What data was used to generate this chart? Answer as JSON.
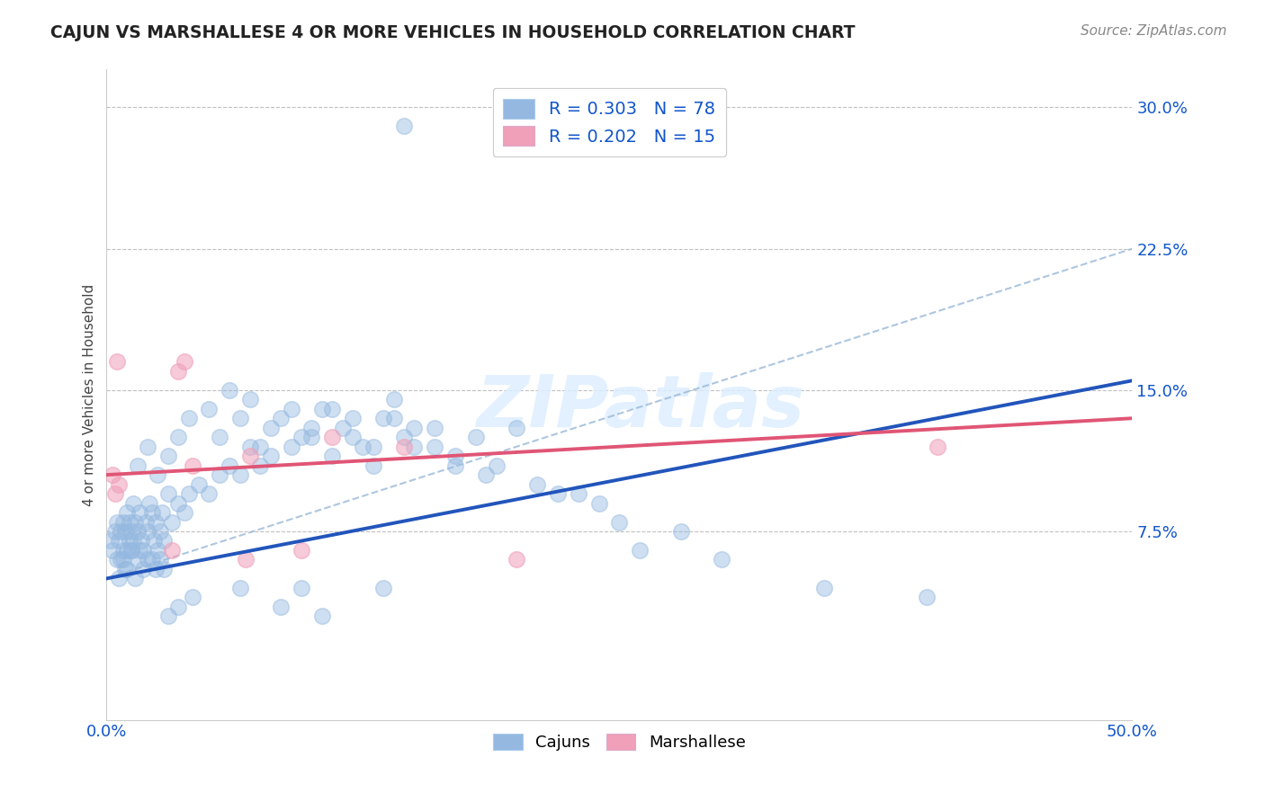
{
  "title": "CAJUN VS MARSHALLESE 4 OR MORE VEHICLES IN HOUSEHOLD CORRELATION CHART",
  "source": "Source: ZipAtlas.com",
  "xmin": 0.0,
  "xmax": 50.0,
  "ymin": -2.5,
  "ymax": 32.0,
  "yticks": [
    7.5,
    15.0,
    22.5,
    30.0
  ],
  "xticks": [
    0.0,
    50.0
  ],
  "cajun_R": 0.303,
  "cajun_N": 78,
  "marshallese_R": 0.202,
  "marshallese_N": 15,
  "cajun_color": "#94b8e0",
  "marshallese_color": "#f0a0b8",
  "trendline_cajun_color": "#2255bb",
  "trendline_marshallese_color": "#e05575",
  "trendline_dashed_color": "#9ab8d8",
  "background_color": "#ffffff",
  "cajun_x": [
    0.2,
    0.3,
    0.4,
    0.5,
    0.5,
    0.6,
    0.7,
    0.7,
    0.8,
    0.8,
    0.9,
    0.9,
    1.0,
    1.0,
    1.1,
    1.1,
    1.2,
    1.2,
    1.3,
    1.3,
    1.4,
    1.5,
    1.5,
    1.6,
    1.7,
    1.8,
    1.9,
    2.0,
    2.0,
    2.1,
    2.2,
    2.3,
    2.4,
    2.5,
    2.6,
    2.7,
    2.8,
    3.0,
    3.2,
    3.5,
    3.8,
    4.0,
    4.5,
    5.0,
    5.5,
    6.0,
    6.5,
    7.0,
    7.5,
    8.0,
    9.0,
    10.0,
    11.0,
    12.0,
    13.0,
    14.0,
    15.0,
    16.0,
    17.0,
    18.0,
    19.0,
    20.0,
    22.0,
    24.0,
    26.0,
    28.0,
    30.0,
    35.0,
    40.0,
    14.5,
    3.0,
    3.5,
    4.2,
    6.5,
    8.5,
    9.5,
    10.5,
    13.5
  ],
  "cajun_y": [
    7.0,
    6.5,
    7.5,
    8.0,
    6.0,
    7.0,
    7.5,
    6.0,
    8.0,
    6.5,
    7.5,
    5.5,
    8.5,
    6.5,
    7.0,
    8.0,
    7.5,
    6.5,
    9.0,
    7.0,
    8.0,
    7.5,
    6.0,
    8.5,
    7.0,
    6.5,
    8.0,
    7.5,
    6.0,
    9.0,
    8.5,
    7.0,
    8.0,
    6.5,
    7.5,
    8.5,
    7.0,
    9.5,
    8.0,
    9.0,
    8.5,
    9.5,
    10.0,
    9.5,
    10.5,
    11.0,
    10.5,
    12.0,
    11.0,
    11.5,
    12.0,
    13.0,
    11.5,
    12.5,
    11.0,
    13.5,
    12.0,
    13.0,
    11.5,
    12.5,
    11.0,
    13.0,
    9.5,
    9.0,
    6.5,
    7.5,
    6.0,
    4.5,
    4.0,
    29.0,
    3.0,
    3.5,
    4.0,
    4.5,
    3.5,
    4.5,
    3.0,
    4.5
  ],
  "cajun_x_extra": [
    1.5,
    2.0,
    2.5,
    3.0,
    3.5,
    4.0,
    5.0,
    6.0,
    7.0,
    8.0,
    9.0,
    10.0,
    11.0,
    12.0,
    13.0,
    14.0,
    15.0,
    16.0,
    5.5,
    6.5,
    7.5,
    8.5,
    9.5,
    10.5,
    11.5,
    12.5,
    13.5,
    14.5,
    0.6,
    0.8,
    1.0,
    1.2,
    1.4,
    1.6,
    1.8,
    2.2,
    2.4,
    2.6,
    2.8,
    17.0,
    18.5,
    21.0,
    23.0,
    25.0
  ],
  "cajun_y_extra": [
    11.0,
    12.0,
    10.5,
    11.5,
    12.5,
    13.5,
    14.0,
    15.0,
    14.5,
    13.0,
    14.0,
    12.5,
    14.0,
    13.5,
    12.0,
    14.5,
    13.0,
    12.0,
    12.5,
    13.5,
    12.0,
    13.5,
    12.5,
    14.0,
    13.0,
    12.0,
    13.5,
    12.5,
    5.0,
    6.0,
    5.5,
    6.5,
    5.0,
    6.5,
    5.5,
    6.0,
    5.5,
    6.0,
    5.5,
    11.0,
    10.5,
    10.0,
    9.5,
    8.0
  ],
  "marsh_x": [
    0.3,
    0.4,
    0.5,
    3.5,
    3.8,
    4.2,
    7.0,
    9.5,
    11.0,
    14.5,
    40.5,
    3.2,
    0.6,
    6.8,
    20.0
  ],
  "marsh_y": [
    10.5,
    9.5,
    16.5,
    16.0,
    16.5,
    11.0,
    11.5,
    6.5,
    12.5,
    12.0,
    12.0,
    6.5,
    10.0,
    6.0,
    6.0
  ],
  "cajun_trend_x0": 0.0,
  "cajun_trend_y0": 5.0,
  "cajun_trend_x1": 50.0,
  "cajun_trend_y1": 15.5,
  "marsh_trend_x0": 0.0,
  "marsh_trend_y0": 10.5,
  "marsh_trend_x1": 50.0,
  "marsh_trend_y1": 13.5,
  "dashed_x0": 0.0,
  "dashed_y0": 5.0,
  "dashed_x1": 50.0,
  "dashed_y1": 22.5,
  "legend_text_color": "#1155cc",
  "legend_n_color": "#1155cc"
}
